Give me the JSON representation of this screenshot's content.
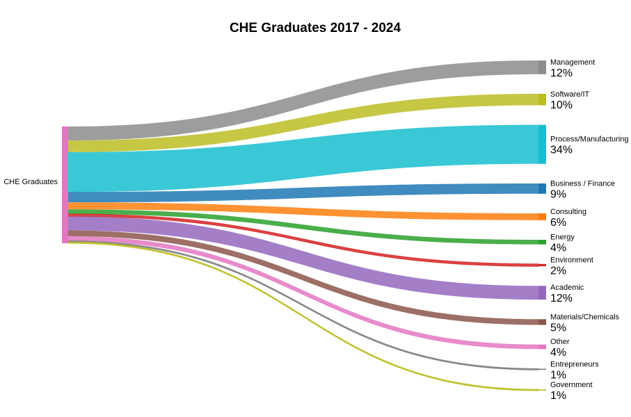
{
  "chart_data": {
    "type": "sankey",
    "title": "CHE Graduates 2017 - 2024",
    "source": {
      "name": "CHE Graduates",
      "color": "#e377c2"
    },
    "targets": [
      {
        "name": "Management",
        "pct_label": "12%",
        "value": 12,
        "color": "#8c8c8c"
      },
      {
        "name": "Software/IT",
        "pct_label": "10%",
        "value": 10,
        "color": "#bcbd22"
      },
      {
        "name": "Process/Manufacturing",
        "pct_label": "34%",
        "value": 34,
        "color": "#17becf"
      },
      {
        "name": "Business / Finance",
        "pct_label": "9%",
        "value": 9,
        "color": "#1f77b4"
      },
      {
        "name": "Consulting",
        "pct_label": "6%",
        "value": 6,
        "color": "#ff7f0e"
      },
      {
        "name": "Energy",
        "pct_label": "4%",
        "value": 4,
        "color": "#2ca02c"
      },
      {
        "name": "Environment",
        "pct_label": "2%",
        "value": 2,
        "color": "#d62728"
      },
      {
        "name": "Academic",
        "pct_label": "12%",
        "value": 12,
        "color": "#9467bd"
      },
      {
        "name": "Materials/Chemicals",
        "pct_label": "5%",
        "value": 5,
        "color": "#8c564b"
      },
      {
        "name": "Other",
        "pct_label": "4%",
        "value": 4,
        "color": "#e377c2"
      },
      {
        "name": "Entrepreneurs",
        "pct_label": "1%",
        "value": 1,
        "color": "#7f7f7f"
      },
      {
        "name": "Government",
        "pct_label": "1%",
        "value": 1,
        "color": "#bcbd22"
      }
    ]
  }
}
